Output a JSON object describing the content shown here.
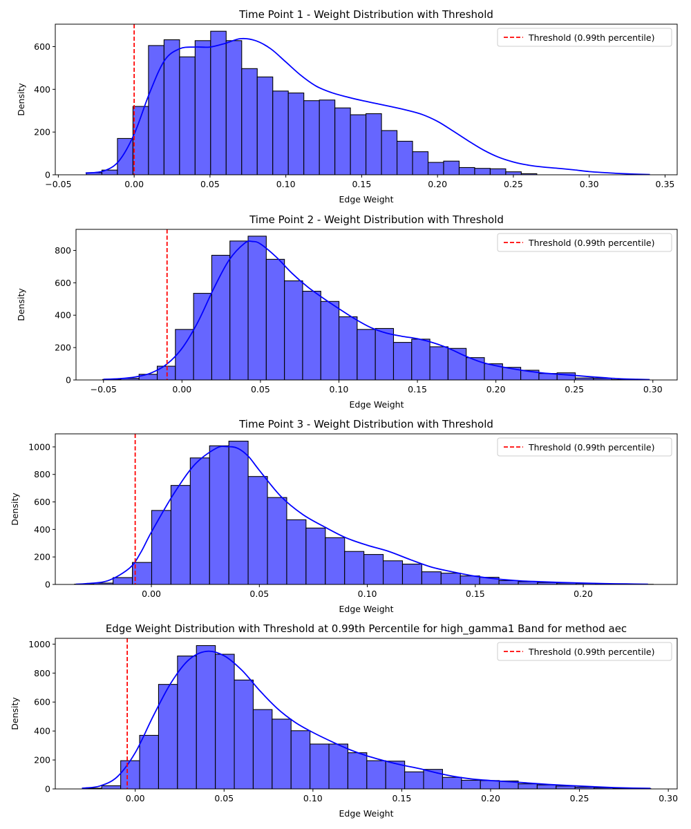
{
  "chart_data": [
    {
      "type": "bar",
      "title": "Time Point 1 - Weight Distribution with Threshold",
      "xlabel": "Edge Weight",
      "ylabel": "Density",
      "xlim": [
        -0.052,
        0.358
      ],
      "ylim": [
        0,
        705
      ],
      "xticks": [
        -0.05,
        0.0,
        0.05,
        0.1,
        0.15,
        0.2,
        0.25,
        0.3,
        0.35
      ],
      "xtick_labels": [
        "−0.05",
        "0.00",
        "0.05",
        "0.10",
        "0.15",
        "0.20",
        "0.25",
        "0.30",
        "0.35"
      ],
      "yticks": [
        0,
        200,
        400,
        600
      ],
      "ytick_labels": [
        "0",
        "200",
        "400",
        "600"
      ],
      "bin_start": -0.0315,
      "bin_width": 0.01024,
      "values": [
        10,
        22,
        170,
        320,
        605,
        632,
        552,
        628,
        672,
        628,
        497,
        458,
        392,
        383,
        347,
        350,
        313,
        281,
        286,
        207,
        157,
        108,
        58,
        64,
        34,
        30,
        28,
        14,
        5
      ],
      "kde": [
        [
          -0.032,
          8
        ],
        [
          -0.02,
          18
        ],
        [
          -0.01,
          65
        ],
        [
          0.0,
          190
        ],
        [
          0.01,
          380
        ],
        [
          0.02,
          535
        ],
        [
          0.03,
          590
        ],
        [
          0.04,
          598
        ],
        [
          0.05,
          598
        ],
        [
          0.06,
          615
        ],
        [
          0.07,
          637
        ],
        [
          0.08,
          628
        ],
        [
          0.09,
          590
        ],
        [
          0.1,
          528
        ],
        [
          0.11,
          465
        ],
        [
          0.12,
          415
        ],
        [
          0.13,
          385
        ],
        [
          0.14,
          365
        ],
        [
          0.15,
          348
        ],
        [
          0.16,
          333
        ],
        [
          0.17,
          318
        ],
        [
          0.18,
          302
        ],
        [
          0.19,
          282
        ],
        [
          0.2,
          250
        ],
        [
          0.21,
          206
        ],
        [
          0.22,
          160
        ],
        [
          0.23,
          117
        ],
        [
          0.24,
          83
        ],
        [
          0.25,
          60
        ],
        [
          0.26,
          45
        ],
        [
          0.27,
          36
        ],
        [
          0.28,
          30
        ],
        [
          0.29,
          23
        ],
        [
          0.3,
          15
        ],
        [
          0.31,
          10
        ],
        [
          0.32,
          6
        ],
        [
          0.33,
          3
        ],
        [
          0.34,
          1
        ]
      ],
      "threshold": 0.0,
      "legend": "Threshold (0.99th percentile)",
      "legend_position": "top-right",
      "grid": false,
      "colors": {
        "bar": "#6666ff",
        "edge": "#000000",
        "kde": "#0000ff",
        "threshold": "#ff0000"
      }
    },
    {
      "type": "bar",
      "title": "Time Point 2 - Weight Distribution with Threshold",
      "xlabel": "Edge Weight",
      "ylabel": "Density",
      "xlim": [
        -0.0675,
        0.3155
      ],
      "ylim": [
        0,
        930
      ],
      "xticks": [
        -0.05,
        0.0,
        0.05,
        0.1,
        0.15,
        0.2,
        0.25,
        0.3
      ],
      "xtick_labels": [
        "−0.05",
        "0.00",
        "0.05",
        "0.10",
        "0.15",
        "0.20",
        "0.25",
        "0.30"
      ],
      "yticks": [
        0,
        200,
        400,
        600,
        800
      ],
      "ytick_labels": [
        "0",
        "200",
        "400",
        "600",
        "800"
      ],
      "bin_start": -0.0505,
      "bin_width": 0.01158,
      "values": [
        3,
        10,
        35,
        85,
        312,
        535,
        770,
        858,
        888,
        745,
        612,
        548,
        485,
        390,
        312,
        318,
        232,
        252,
        205,
        195,
        138,
        100,
        78,
        60,
        40,
        44,
        12,
        10,
        2,
        1
      ],
      "kde": [
        [
          -0.05,
          4
        ],
        [
          -0.04,
          8
        ],
        [
          -0.03,
          18
        ],
        [
          -0.02,
          42
        ],
        [
          -0.01,
          95
        ],
        [
          0.0,
          195
        ],
        [
          0.01,
          355
        ],
        [
          0.02,
          560
        ],
        [
          0.03,
          740
        ],
        [
          0.04,
          845
        ],
        [
          0.045,
          855
        ],
        [
          0.05,
          840
        ],
        [
          0.06,
          760
        ],
        [
          0.07,
          660
        ],
        [
          0.08,
          575
        ],
        [
          0.09,
          505
        ],
        [
          0.1,
          440
        ],
        [
          0.11,
          378
        ],
        [
          0.12,
          325
        ],
        [
          0.13,
          290
        ],
        [
          0.14,
          270
        ],
        [
          0.15,
          255
        ],
        [
          0.16,
          230
        ],
        [
          0.17,
          195
        ],
        [
          0.18,
          150
        ],
        [
          0.19,
          112
        ],
        [
          0.2,
          88
        ],
        [
          0.21,
          70
        ],
        [
          0.22,
          55
        ],
        [
          0.23,
          43
        ],
        [
          0.24,
          35
        ],
        [
          0.25,
          28
        ],
        [
          0.26,
          20
        ],
        [
          0.27,
          13
        ],
        [
          0.28,
          7
        ],
        [
          0.29,
          4
        ],
        [
          0.298,
          2
        ]
      ],
      "threshold": -0.0095,
      "legend": "Threshold (0.99th percentile)",
      "legend_position": "top-right",
      "grid": false,
      "colors": {
        "bar": "#6666ff",
        "edge": "#000000",
        "kde": "#0000ff",
        "threshold": "#ff0000"
      }
    },
    {
      "type": "bar",
      "title": "Time Point 3 - Weight Distribution with Threshold",
      "xlabel": "Edge Weight",
      "ylabel": "Density",
      "xlim": [
        -0.0445,
        0.2435
      ],
      "ylim": [
        0,
        1095
      ],
      "xticks": [
        0.0,
        0.05,
        0.1,
        0.15,
        0.2
      ],
      "xtick_labels": [
        "0.00",
        "0.05",
        "0.10",
        "0.15",
        "0.20"
      ],
      "yticks": [
        0,
        200,
        400,
        600,
        800,
        1000
      ],
      "ytick_labels": [
        "0",
        "200",
        "400",
        "600",
        "800",
        "1000"
      ],
      "bin_start": -0.0356,
      "bin_width": 0.008935,
      "values": [
        2,
        10,
        50,
        160,
        538,
        720,
        920,
        1008,
        1042,
        785,
        632,
        470,
        410,
        340,
        240,
        218,
        172,
        148,
        92,
        82,
        62,
        52,
        28,
        20,
        14,
        10,
        8,
        3,
        2,
        1
      ],
      "kde": [
        [
          -0.035,
          2
        ],
        [
          -0.03,
          6
        ],
        [
          -0.02,
          28
        ],
        [
          -0.01,
          120
        ],
        [
          -0.005,
          230
        ],
        [
          0.0,
          380
        ],
        [
          0.01,
          650
        ],
        [
          0.02,
          870
        ],
        [
          0.03,
          990
        ],
        [
          0.035,
          1002
        ],
        [
          0.04,
          990
        ],
        [
          0.045,
          930
        ],
        [
          0.05,
          830
        ],
        [
          0.06,
          640
        ],
        [
          0.07,
          510
        ],
        [
          0.08,
          420
        ],
        [
          0.09,
          340
        ],
        [
          0.1,
          285
        ],
        [
          0.11,
          240
        ],
        [
          0.12,
          180
        ],
        [
          0.13,
          125
        ],
        [
          0.14,
          90
        ],
        [
          0.15,
          60
        ],
        [
          0.16,
          40
        ],
        [
          0.17,
          27
        ],
        [
          0.18,
          20
        ],
        [
          0.19,
          14
        ],
        [
          0.2,
          10
        ],
        [
          0.21,
          6
        ],
        [
          0.22,
          4
        ],
        [
          0.23,
          2
        ]
      ],
      "threshold": -0.0075,
      "legend": "Threshold (0.99th percentile)",
      "legend_position": "top-right",
      "grid": false,
      "colors": {
        "bar": "#6666ff",
        "edge": "#000000",
        "kde": "#0000ff",
        "threshold": "#ff0000"
      }
    },
    {
      "type": "bar",
      "title": "Edge Weight Distribution with Threshold at 0.99th Percentile for high_gamma1 Band for method aec",
      "xlabel": "Edge Weight",
      "ylabel": "Density",
      "xlim": [
        -0.045,
        0.305
      ],
      "ylim": [
        0,
        1040
      ],
      "xticks": [
        0.0,
        0.05,
        0.1,
        0.15,
        0.2,
        0.25,
        0.3
      ],
      "xtick_labels": [
        "0.00",
        "0.05",
        "0.10",
        "0.15",
        "0.20",
        "0.25",
        "0.30"
      ],
      "yticks": [
        0,
        200,
        400,
        600,
        800,
        1000
      ],
      "ytick_labels": [
        "0",
        "200",
        "400",
        "600",
        "800",
        "1000"
      ],
      "bin_start": -0.0295,
      "bin_width": 0.010655,
      "values": [
        5,
        22,
        195,
        370,
        722,
        918,
        990,
        930,
        752,
        548,
        482,
        402,
        310,
        310,
        250,
        195,
        192,
        118,
        135,
        80,
        60,
        58,
        55,
        35,
        28,
        20,
        12,
        8,
        4,
        2
      ],
      "kde": [
        [
          -0.03,
          5
        ],
        [
          -0.02,
          20
        ],
        [
          -0.01,
          85
        ],
        [
          0.0,
          250
        ],
        [
          0.01,
          500
        ],
        [
          0.02,
          730
        ],
        [
          0.03,
          890
        ],
        [
          0.04,
          950
        ],
        [
          0.05,
          920
        ],
        [
          0.06,
          820
        ],
        [
          0.07,
          680
        ],
        [
          0.08,
          555
        ],
        [
          0.09,
          460
        ],
        [
          0.1,
          390
        ],
        [
          0.11,
          330
        ],
        [
          0.12,
          275
        ],
        [
          0.13,
          230
        ],
        [
          0.14,
          195
        ],
        [
          0.15,
          165
        ],
        [
          0.16,
          140
        ],
        [
          0.17,
          110
        ],
        [
          0.18,
          85
        ],
        [
          0.19,
          68
        ],
        [
          0.2,
          58
        ],
        [
          0.21,
          50
        ],
        [
          0.22,
          42
        ],
        [
          0.23,
          33
        ],
        [
          0.24,
          26
        ],
        [
          0.25,
          20
        ],
        [
          0.26,
          14
        ],
        [
          0.27,
          9
        ],
        [
          0.28,
          6
        ],
        [
          0.29,
          4
        ]
      ],
      "threshold": -0.0045,
      "legend": "Threshold (0.99th percentile)",
      "legend_position": "top-right",
      "grid": false,
      "colors": {
        "bar": "#6666ff",
        "edge": "#000000",
        "kde": "#0000ff",
        "threshold": "#ff0000"
      }
    }
  ]
}
